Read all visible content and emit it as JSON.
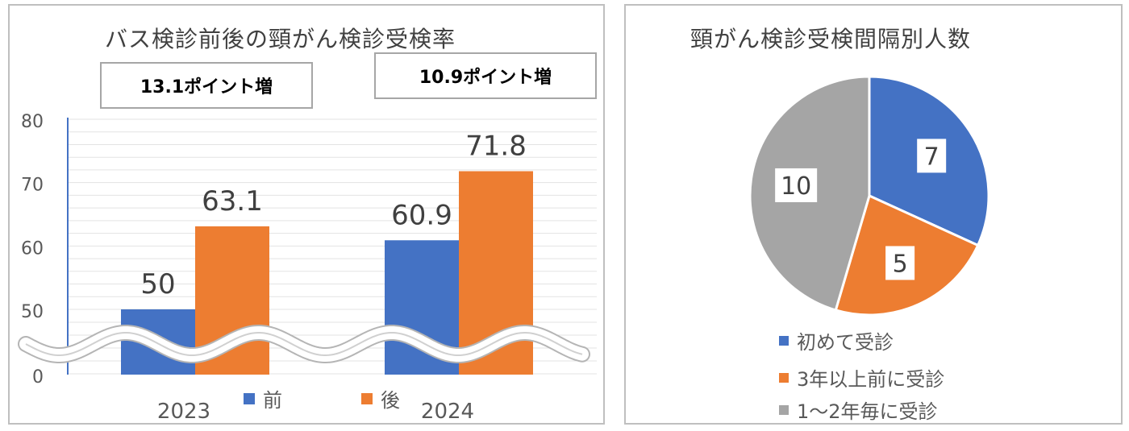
{
  "colors": {
    "blue": "#4472c4",
    "orange": "#ed7d31",
    "gray": "#a5a5a5"
  },
  "bar_panel": {
    "callouts": {
      "left": "13.1ポイント増",
      "right": "10.9ポイント増"
    }
  },
  "pie_panel": {},
  "chart_data": [
    {
      "type": "bar",
      "title": "バス検診前後の頸がん検診受検率",
      "categories": [
        "2023",
        "2024"
      ],
      "series": [
        {
          "name": "前",
          "color": "#4472c4",
          "values": [
            50,
            60.9
          ],
          "labels": [
            "50",
            "60.9"
          ]
        },
        {
          "name": "後",
          "color": "#ed7d31",
          "values": [
            63.1,
            71.8
          ],
          "labels": [
            "63.1",
            "71.8"
          ]
        }
      ],
      "yticks": [
        "0",
        "50",
        "60",
        "70",
        "80"
      ],
      "ylim": [
        0,
        80
      ],
      "axis_break": "between 0 and 50",
      "grid": true,
      "legend": "bottom"
    },
    {
      "type": "pie",
      "title": "頸がん検診受検間隔別人数",
      "slices": [
        {
          "label": "初めて受診",
          "value": 7,
          "color": "#4472c4"
        },
        {
          "label": "3年以上前に受診",
          "value": 5,
          "color": "#ed7d31"
        },
        {
          "label": "1～2年毎に受診",
          "value": 10,
          "color": "#a5a5a5"
        }
      ],
      "legend": "bottom"
    }
  ]
}
